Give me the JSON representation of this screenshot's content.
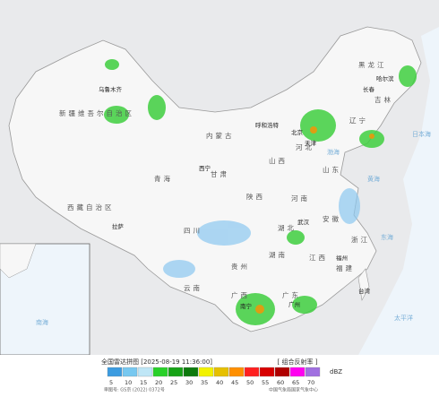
{
  "legend": {
    "title": "全国雷达拼图 [2025-08-19 11:36:00]",
    "product": "[ 组合反射率 ]",
    "unit": "dBZ",
    "values": [
      5,
      10,
      15,
      20,
      25,
      30,
      35,
      40,
      45,
      50,
      55,
      60,
      65,
      70
    ],
    "colors": [
      "#3c9ce0",
      "#77c8f0",
      "#bfe6f6",
      "#29d129",
      "#17a317",
      "#0d7a0d",
      "#f2f200",
      "#e6c000",
      "#ff9000",
      "#ff2020",
      "#d80000",
      "#b00000",
      "#ff00f0",
      "#a070e0"
    ]
  },
  "map": {
    "labels": [
      "新疆维吾尔自治区",
      "西藏自治区",
      "青海",
      "内蒙古",
      "黑龙江",
      "吉林",
      "四川",
      "云南",
      "甘肃",
      "陕西",
      "山西",
      "河南",
      "湖北",
      "湖南",
      "广东",
      "广西",
      "贵州",
      "江西",
      "福建",
      "浙江",
      "安徽",
      "山东",
      "河北",
      "辽宁",
      "乌鲁木齐",
      "拉萨",
      "西宁",
      "呼和浩特",
      "北京",
      "天津",
      "长春",
      "哈尔滨",
      "武汉",
      "南宁",
      "广州",
      "福州",
      "台湾",
      "渤海",
      "黄海",
      "东海",
      "南海",
      "太平洋",
      "日本海"
    ]
  },
  "footer": {
    "approval": "审图号: GS京 (2022) 0372号",
    "agency": "中国气象局国家气象中心"
  }
}
